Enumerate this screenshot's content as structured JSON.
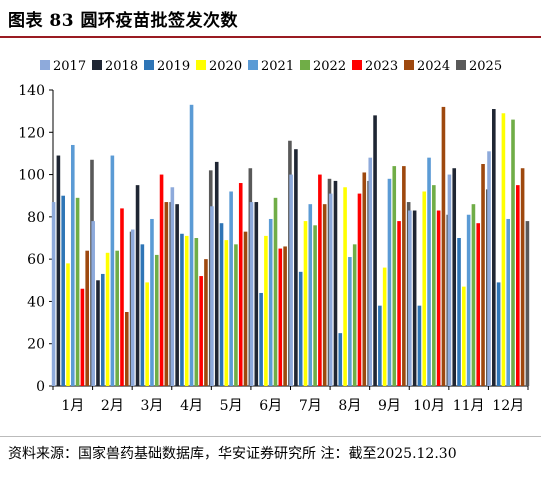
{
  "title": "图表 83 圆环疫苗批签发次数",
  "source_note": "资料来源：国家兽药基础数据库，华安证券研究所 注：截至2025.12.30",
  "chart_data": {
    "type": "bar",
    "title": "",
    "xlabel": "",
    "ylabel": "",
    "ylim": [
      0,
      140
    ],
    "yticks": [
      0,
      20,
      40,
      60,
      80,
      100,
      120,
      140
    ],
    "grid": false,
    "legend_position": "top",
    "categories": [
      "1月",
      "2月",
      "3月",
      "4月",
      "5月",
      "6月",
      "7月",
      "8月",
      "9月",
      "10月",
      "11月",
      "12月"
    ],
    "series": [
      {
        "name": "2017",
        "color": "#8eaadb",
        "values": [
          87,
          78,
          74,
          94,
          85,
          87,
          100,
          91,
          108,
          83,
          100,
          111
        ]
      },
      {
        "name": "2018",
        "color": "#1f2633",
        "values": [
          109,
          50,
          95,
          86,
          106,
          87,
          112,
          97,
          128,
          83,
          103,
          131
        ]
      },
      {
        "name": "2019",
        "color": "#2e75b6",
        "values": [
          90,
          53,
          67,
          72,
          77,
          44,
          54,
          25,
          38,
          38,
          70,
          49
        ]
      },
      {
        "name": "2020",
        "color": "#ffff00",
        "values": [
          58,
          63,
          49,
          71,
          69,
          71,
          78,
          94,
          56,
          92,
          47,
          129
        ]
      },
      {
        "name": "2021",
        "color": "#5b9bd5",
        "values": [
          114,
          109,
          79,
          133,
          92,
          79,
          86,
          61,
          98,
          108,
          81,
          79
        ]
      },
      {
        "name": "2022",
        "color": "#70ad47",
        "values": [
          89,
          64,
          62,
          70,
          67,
          89,
          76,
          67,
          104,
          95,
          86,
          126
        ]
      },
      {
        "name": "2023",
        "color": "#ff0000",
        "values": [
          46,
          84,
          100,
          52,
          96,
          65,
          100,
          91,
          78,
          83,
          77,
          95
        ]
      },
      {
        "name": "2024",
        "color": "#9e480e",
        "values": [
          64,
          35,
          87,
          60,
          73,
          66,
          86,
          101,
          104,
          132,
          105,
          103
        ]
      },
      {
        "name": "2025",
        "color": "#595959",
        "values": [
          107,
          73,
          87,
          102,
          103,
          116,
          98,
          97,
          87,
          81,
          93,
          78
        ]
      }
    ]
  }
}
